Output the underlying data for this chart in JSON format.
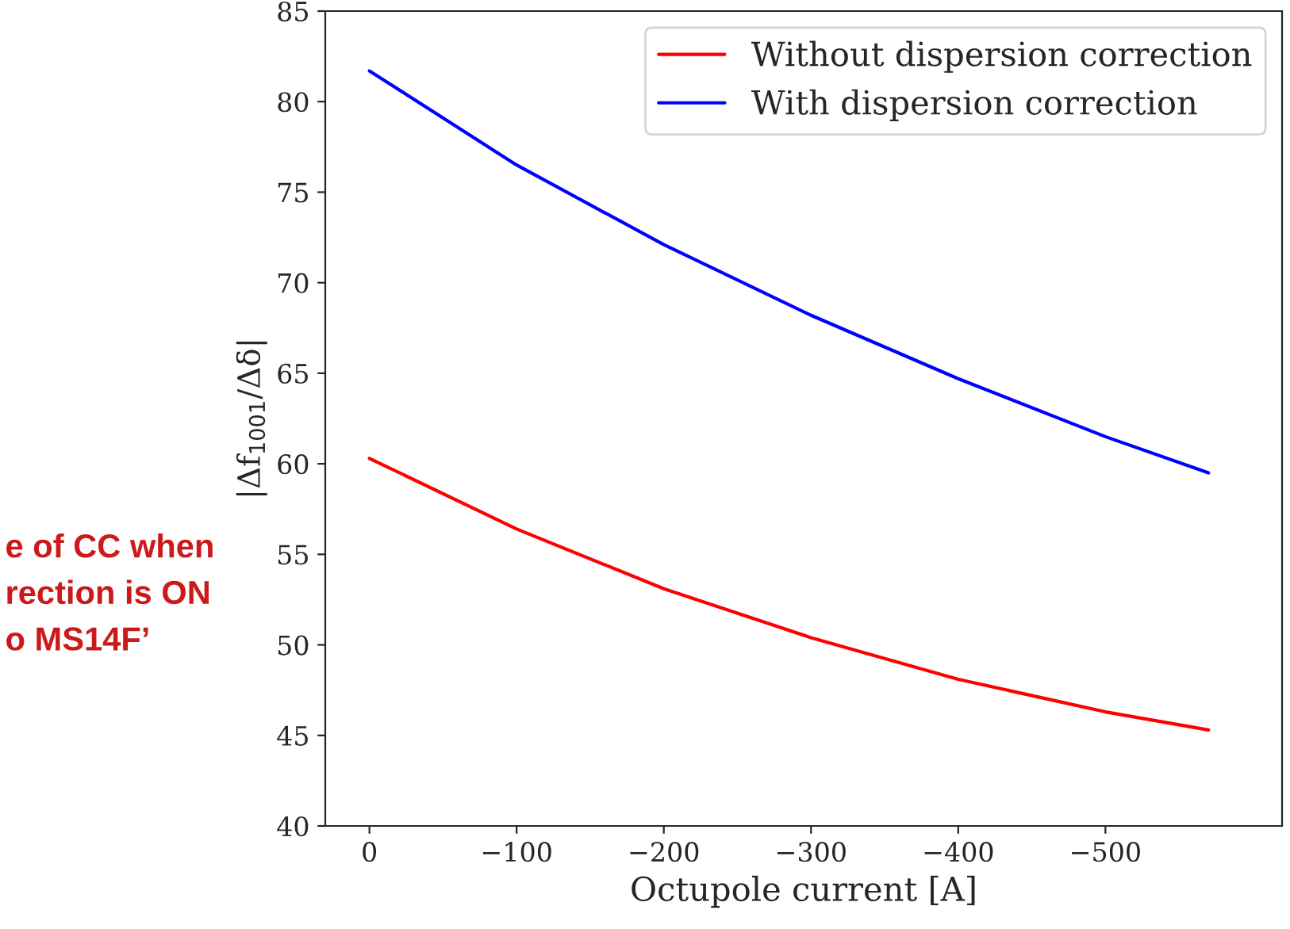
{
  "chart_data": {
    "type": "line",
    "xlabel": "Octupole current [A]",
    "ylabel": "|Δf$_{1001}$/Δδ|",
    "xlim": [
      30,
      -620
    ],
    "xticks": [
      0,
      {
        "value": -100,
        "label": "−100"
      },
      {
        "value": -200,
        "label": "−200"
      },
      {
        "value": -300,
        "label": "−300"
      },
      {
        "value": -400,
        "label": "−400"
      },
      {
        "value": -500,
        "label": "−500"
      }
    ],
    "ylim": [
      40,
      85
    ],
    "yticks": [
      40,
      45,
      50,
      55,
      60,
      65,
      70,
      75,
      80,
      85
    ],
    "x": [
      0,
      -100,
      -200,
      -300,
      -400,
      -500,
      -570
    ],
    "series": [
      {
        "name": "Without dispersion correction",
        "color": "#ff0000",
        "values": [
          60.3,
          56.4,
          53.1,
          50.4,
          48.1,
          46.3,
          45.3
        ]
      },
      {
        "name": "With dispersion correction",
        "color": "#0000ff",
        "values": [
          81.7,
          76.5,
          72.1,
          68.2,
          64.7,
          61.5,
          59.5
        ]
      }
    ],
    "legend": "top right",
    "grid": false,
    "annotations": [
      "e of CC when",
      "rection is ON",
      "o MS14F’"
    ]
  }
}
